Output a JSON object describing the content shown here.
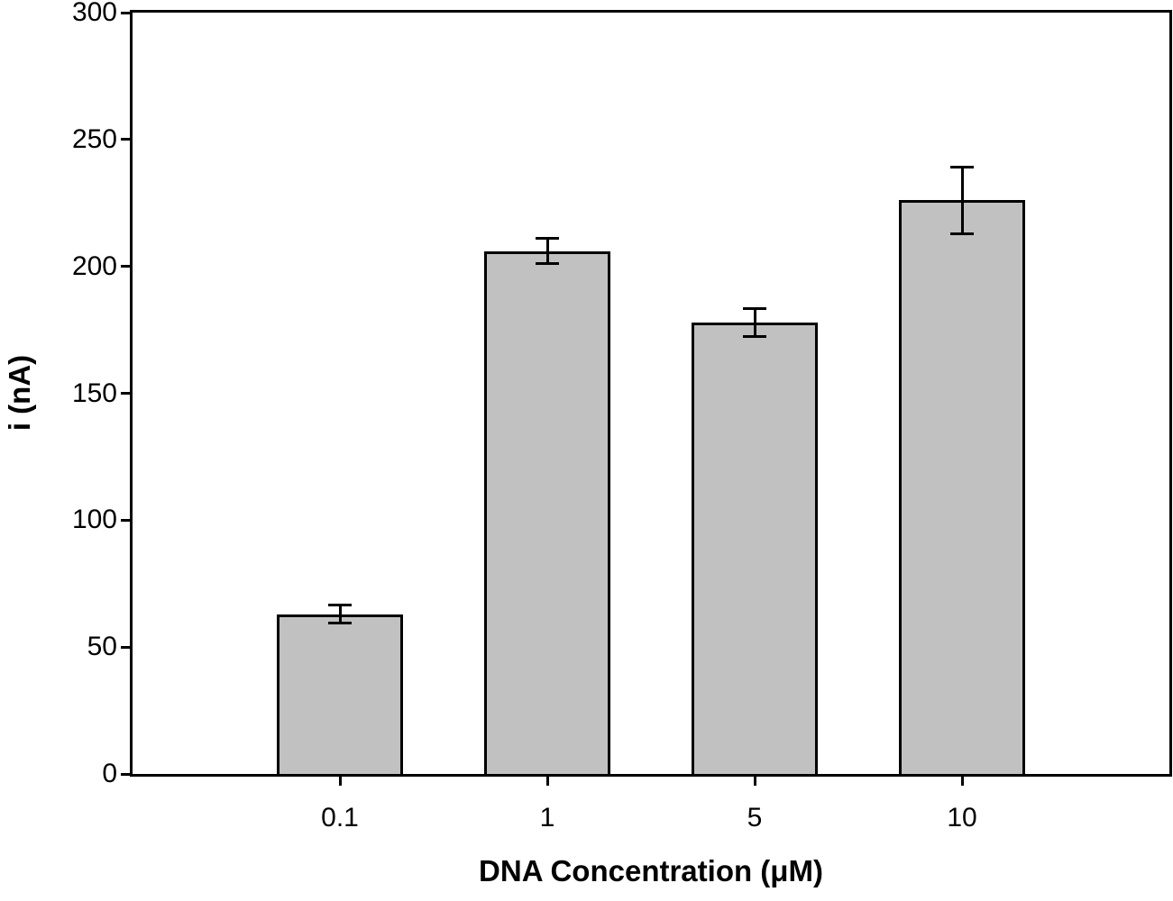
{
  "figure": {
    "background": "#ffffff"
  },
  "chart_data": {
    "type": "bar",
    "title": "",
    "xlabel": "DNA Concentration (μM)",
    "ylabel": "i (nA)",
    "categories": [
      "0.1",
      "1",
      "5",
      "10"
    ],
    "values": [
      63,
      206,
      178,
      226
    ],
    "errors": [
      3.5,
      5,
      5.5,
      13
    ],
    "ylim": [
      0,
      300
    ],
    "yticks": [
      0,
      50,
      100,
      150,
      200,
      250,
      300
    ],
    "grid": false,
    "legend_position": "none",
    "bar_fill": "#c1c1c1",
    "bar_edge": "#000000",
    "axis_color": "#000000",
    "text_color": "#000000"
  }
}
